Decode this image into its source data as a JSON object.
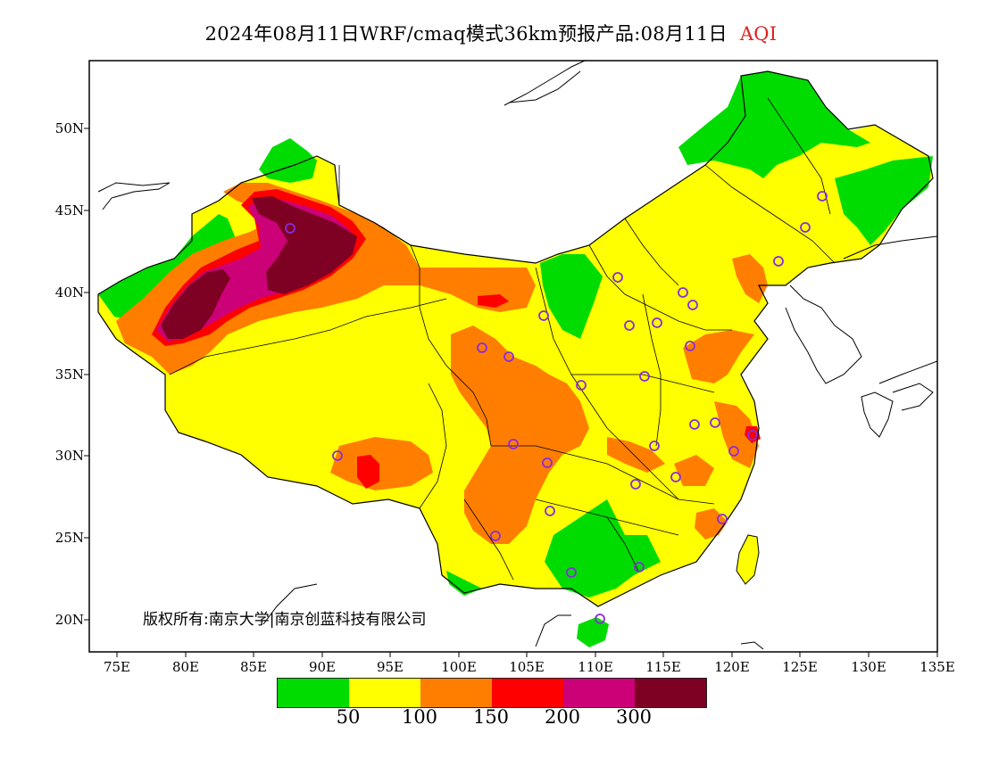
{
  "title": {
    "main": "2024年08月11日WRF/cmaq模式36km预报产品:08月11日",
    "variable": "AQI"
  },
  "axes": {
    "lat_labels": [
      "50N",
      "45N",
      "40N",
      "35N",
      "30N",
      "25N",
      "20N"
    ],
    "lon_labels": [
      "75E",
      "80E",
      "85E",
      "90E",
      "95E",
      "100E",
      "105E",
      "110E",
      "115E",
      "120E",
      "125E",
      "130E",
      "135E"
    ]
  },
  "copyright": "版权所有:南京大学|南京创蓝科技有限公司",
  "legend": {
    "colors": [
      "#00dc00",
      "#ffff00",
      "#ff7e00",
      "#ff0000",
      "#cc0077",
      "#7e0023"
    ],
    "thresholds": [
      "50",
      "100",
      "150",
      "200",
      "300"
    ]
  },
  "station_marker_color": "#8a2be2"
}
